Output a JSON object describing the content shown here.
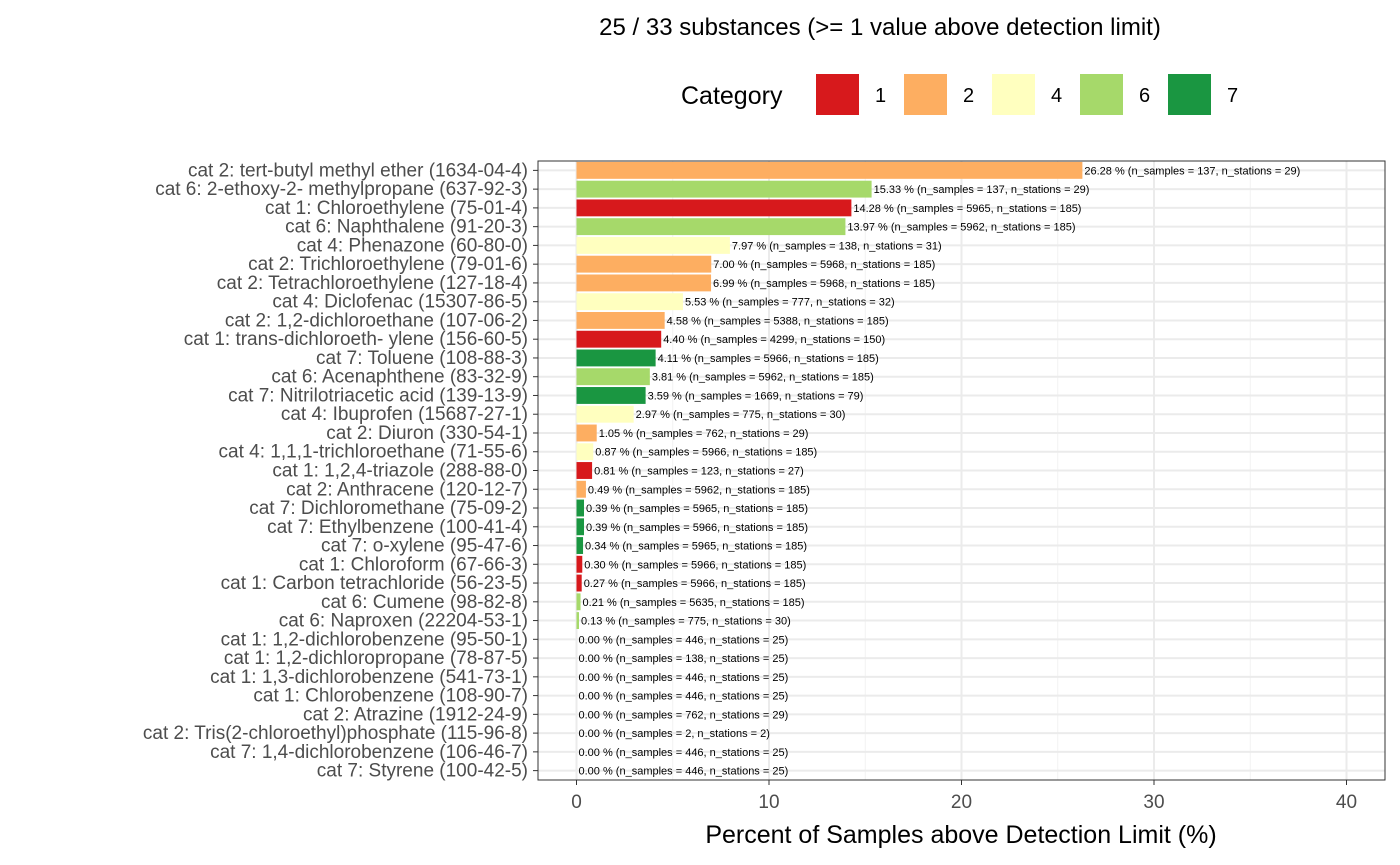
{
  "chart_data": {
    "type": "bar",
    "orientation": "horizontal",
    "title": "25 / 33 substances (>= 1 value above detection limit)",
    "xlabel": "Percent of Samples above Detection Limit (%)",
    "ylabel": "",
    "xlim": [
      -2,
      42
    ],
    "xticks": [
      0,
      10,
      20,
      30,
      40
    ],
    "grid": true,
    "legend": {
      "title": "Category",
      "position": "top",
      "entries": [
        {
          "label": "1",
          "color": "#d7191c"
        },
        {
          "label": "2",
          "color": "#fdae61"
        },
        {
          "label": "4",
          "color": "#ffffbf"
        },
        {
          "label": "6",
          "color": "#a6d96a"
        },
        {
          "label": "7",
          "color": "#1a9641"
        }
      ]
    },
    "rows": [
      {
        "label": "cat 2: tert-butyl methyl ether (1634-04-4)",
        "category": "2",
        "value": 26.28,
        "text": "26.28 % (n_samples = 137, n_stations = 29)"
      },
      {
        "label": "cat 6: 2-ethoxy-2- methylpropane (637-92-3)",
        "category": "6",
        "value": 15.33,
        "text": "15.33 % (n_samples = 137, n_stations = 29)"
      },
      {
        "label": "cat 1: Chloroethylene (75-01-4)",
        "category": "1",
        "value": 14.28,
        "text": "14.28 % (n_samples = 5965, n_stations = 185)"
      },
      {
        "label": "cat 6: Naphthalene (91-20-3)",
        "category": "6",
        "value": 13.97,
        "text": "13.97 % (n_samples = 5962, n_stations = 185)"
      },
      {
        "label": "cat 4: Phenazone (60-80-0)",
        "category": "4",
        "value": 7.97,
        "text": "7.97 % (n_samples = 138, n_stations = 31)"
      },
      {
        "label": "cat 2: Trichloroethylene (79-01-6)",
        "category": "2",
        "value": 7.0,
        "text": "7.00 % (n_samples = 5968, n_stations = 185)"
      },
      {
        "label": "cat 2: Tetrachloroethylene (127-18-4)",
        "category": "2",
        "value": 6.99,
        "text": "6.99 % (n_samples = 5968, n_stations = 185)"
      },
      {
        "label": "cat 4: Diclofenac (15307-86-5)",
        "category": "4",
        "value": 5.53,
        "text": "5.53 % (n_samples = 777, n_stations = 32)"
      },
      {
        "label": "cat 2: 1,2-dichloroethane (107-06-2)",
        "category": "2",
        "value": 4.58,
        "text": "4.58 % (n_samples = 5388, n_stations = 185)"
      },
      {
        "label": "cat 1: trans-dichloroeth- ylene (156-60-5)",
        "category": "1",
        "value": 4.4,
        "text": "4.40 % (n_samples = 4299, n_stations = 150)"
      },
      {
        "label": "cat 7: Toluene (108-88-3)",
        "category": "7",
        "value": 4.11,
        "text": "4.11 % (n_samples = 5966, n_stations = 185)"
      },
      {
        "label": "cat 6: Acenaphthene (83-32-9)",
        "category": "6",
        "value": 3.81,
        "text": "3.81 % (n_samples = 5962, n_stations = 185)"
      },
      {
        "label": "cat 7: Nitrilotriacetic acid (139-13-9)",
        "category": "7",
        "value": 3.59,
        "text": "3.59 % (n_samples = 1669, n_stations = 79)"
      },
      {
        "label": "cat 4: Ibuprofen (15687-27-1)",
        "category": "4",
        "value": 2.97,
        "text": "2.97 % (n_samples = 775, n_stations = 30)"
      },
      {
        "label": "cat 2: Diuron (330-54-1)",
        "category": "2",
        "value": 1.05,
        "text": "1.05 % (n_samples = 762, n_stations = 29)"
      },
      {
        "label": "cat 4: 1,1,1-trichloroethane (71-55-6)",
        "category": "4",
        "value": 0.87,
        "text": "0.87 % (n_samples = 5966, n_stations = 185)"
      },
      {
        "label": "cat 1: 1,2,4-triazole (288-88-0)",
        "category": "1",
        "value": 0.81,
        "text": "0.81 % (n_samples = 123, n_stations = 27)"
      },
      {
        "label": "cat 2: Anthracene (120-12-7)",
        "category": "2",
        "value": 0.49,
        "text": "0.49 % (n_samples = 5962, n_stations = 185)"
      },
      {
        "label": "cat 7: Dichloromethane (75-09-2)",
        "category": "7",
        "value": 0.39,
        "text": "0.39 % (n_samples = 5965, n_stations = 185)"
      },
      {
        "label": "cat 7: Ethylbenzene (100-41-4)",
        "category": "7",
        "value": 0.39,
        "text": "0.39 % (n_samples = 5966, n_stations = 185)"
      },
      {
        "label": "cat 7: o-xylene (95-47-6)",
        "category": "7",
        "value": 0.34,
        "text": "0.34 % (n_samples = 5965, n_stations = 185)"
      },
      {
        "label": "cat 1: Chloroform (67-66-3)",
        "category": "1",
        "value": 0.3,
        "text": "0.30 % (n_samples = 5966, n_stations = 185)"
      },
      {
        "label": "cat 1: Carbon tetrachloride (56-23-5)",
        "category": "1",
        "value": 0.27,
        "text": "0.27 % (n_samples = 5966, n_stations = 185)"
      },
      {
        "label": "cat 6: Cumene (98-82-8)",
        "category": "6",
        "value": 0.21,
        "text": "0.21 % (n_samples = 5635, n_stations = 185)"
      },
      {
        "label": "cat 6: Naproxen (22204-53-1)",
        "category": "6",
        "value": 0.13,
        "text": "0.13 % (n_samples = 775, n_stations = 30)"
      },
      {
        "label": "cat 1: 1,2-dichlorobenzene (95-50-1)",
        "category": "1",
        "value": 0.0,
        "text": "0.00 % (n_samples = 446, n_stations = 25)"
      },
      {
        "label": "cat 1: 1,2-dichloropropane (78-87-5)",
        "category": "1",
        "value": 0.0,
        "text": "0.00 % (n_samples = 138, n_stations = 25)"
      },
      {
        "label": "cat 1: 1,3-dichlorobenzene (541-73-1)",
        "category": "1",
        "value": 0.0,
        "text": "0.00 % (n_samples = 446, n_stations = 25)"
      },
      {
        "label": "cat 1: Chlorobenzene (108-90-7)",
        "category": "1",
        "value": 0.0,
        "text": "0.00 % (n_samples = 446, n_stations = 25)"
      },
      {
        "label": "cat 2: Atrazine (1912-24-9)",
        "category": "2",
        "value": 0.0,
        "text": "0.00 % (n_samples = 762, n_stations = 29)"
      },
      {
        "label": "cat 2: Tris(2-chloroethyl)phosphate (115-96-8)",
        "category": "2",
        "value": 0.0,
        "text": "0.00 % (n_samples = 2, n_stations = 2)"
      },
      {
        "label": "cat 7: 1,4-dichlorobenzene (106-46-7)",
        "category": "7",
        "value": 0.0,
        "text": "0.00 % (n_samples = 446, n_stations = 25)"
      },
      {
        "label": "cat 7: Styrene (100-42-5)",
        "category": "7",
        "value": 0.0,
        "text": "0.00 % (n_samples = 446, n_stations = 25)"
      }
    ]
  }
}
